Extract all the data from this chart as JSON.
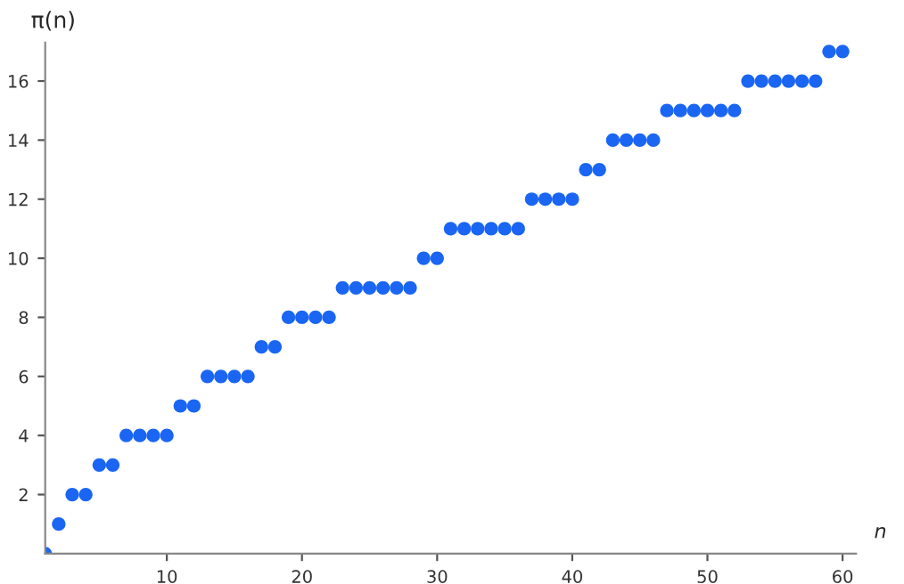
{
  "chart_data": {
    "type": "scatter",
    "xlabel": "n",
    "ylabel": "π(n)",
    "x": [
      1,
      2,
      3,
      4,
      5,
      6,
      7,
      8,
      9,
      10,
      11,
      12,
      13,
      14,
      15,
      16,
      17,
      18,
      19,
      20,
      21,
      22,
      23,
      24,
      25,
      26,
      27,
      28,
      29,
      30,
      31,
      32,
      33,
      34,
      35,
      36,
      37,
      38,
      39,
      40,
      41,
      42,
      43,
      44,
      45,
      46,
      47,
      48,
      49,
      50,
      51,
      52,
      53,
      54,
      55,
      56,
      57,
      58,
      59,
      60
    ],
    "series": [
      {
        "color": "#1a66f2",
        "values": [
          0,
          1,
          2,
          2,
          3,
          3,
          4,
          4,
          4,
          4,
          5,
          5,
          6,
          6,
          6,
          6,
          7,
          7,
          8,
          8,
          8,
          8,
          9,
          9,
          9,
          9,
          9,
          9,
          10,
          10,
          11,
          11,
          11,
          11,
          11,
          11,
          12,
          12,
          12,
          12,
          13,
          13,
          14,
          14,
          14,
          14,
          15,
          15,
          15,
          15,
          15,
          15,
          16,
          16,
          16,
          16,
          16,
          16,
          17,
          17
        ]
      }
    ],
    "xlim": [
      1,
      61
    ],
    "ylim": [
      0,
      17.3
    ],
    "xticks": [
      10,
      20,
      30,
      40,
      50,
      60
    ],
    "yticks": [
      2,
      4,
      6,
      8,
      10,
      12,
      14,
      16
    ],
    "marker": "circle",
    "grid": false,
    "legend": false
  }
}
